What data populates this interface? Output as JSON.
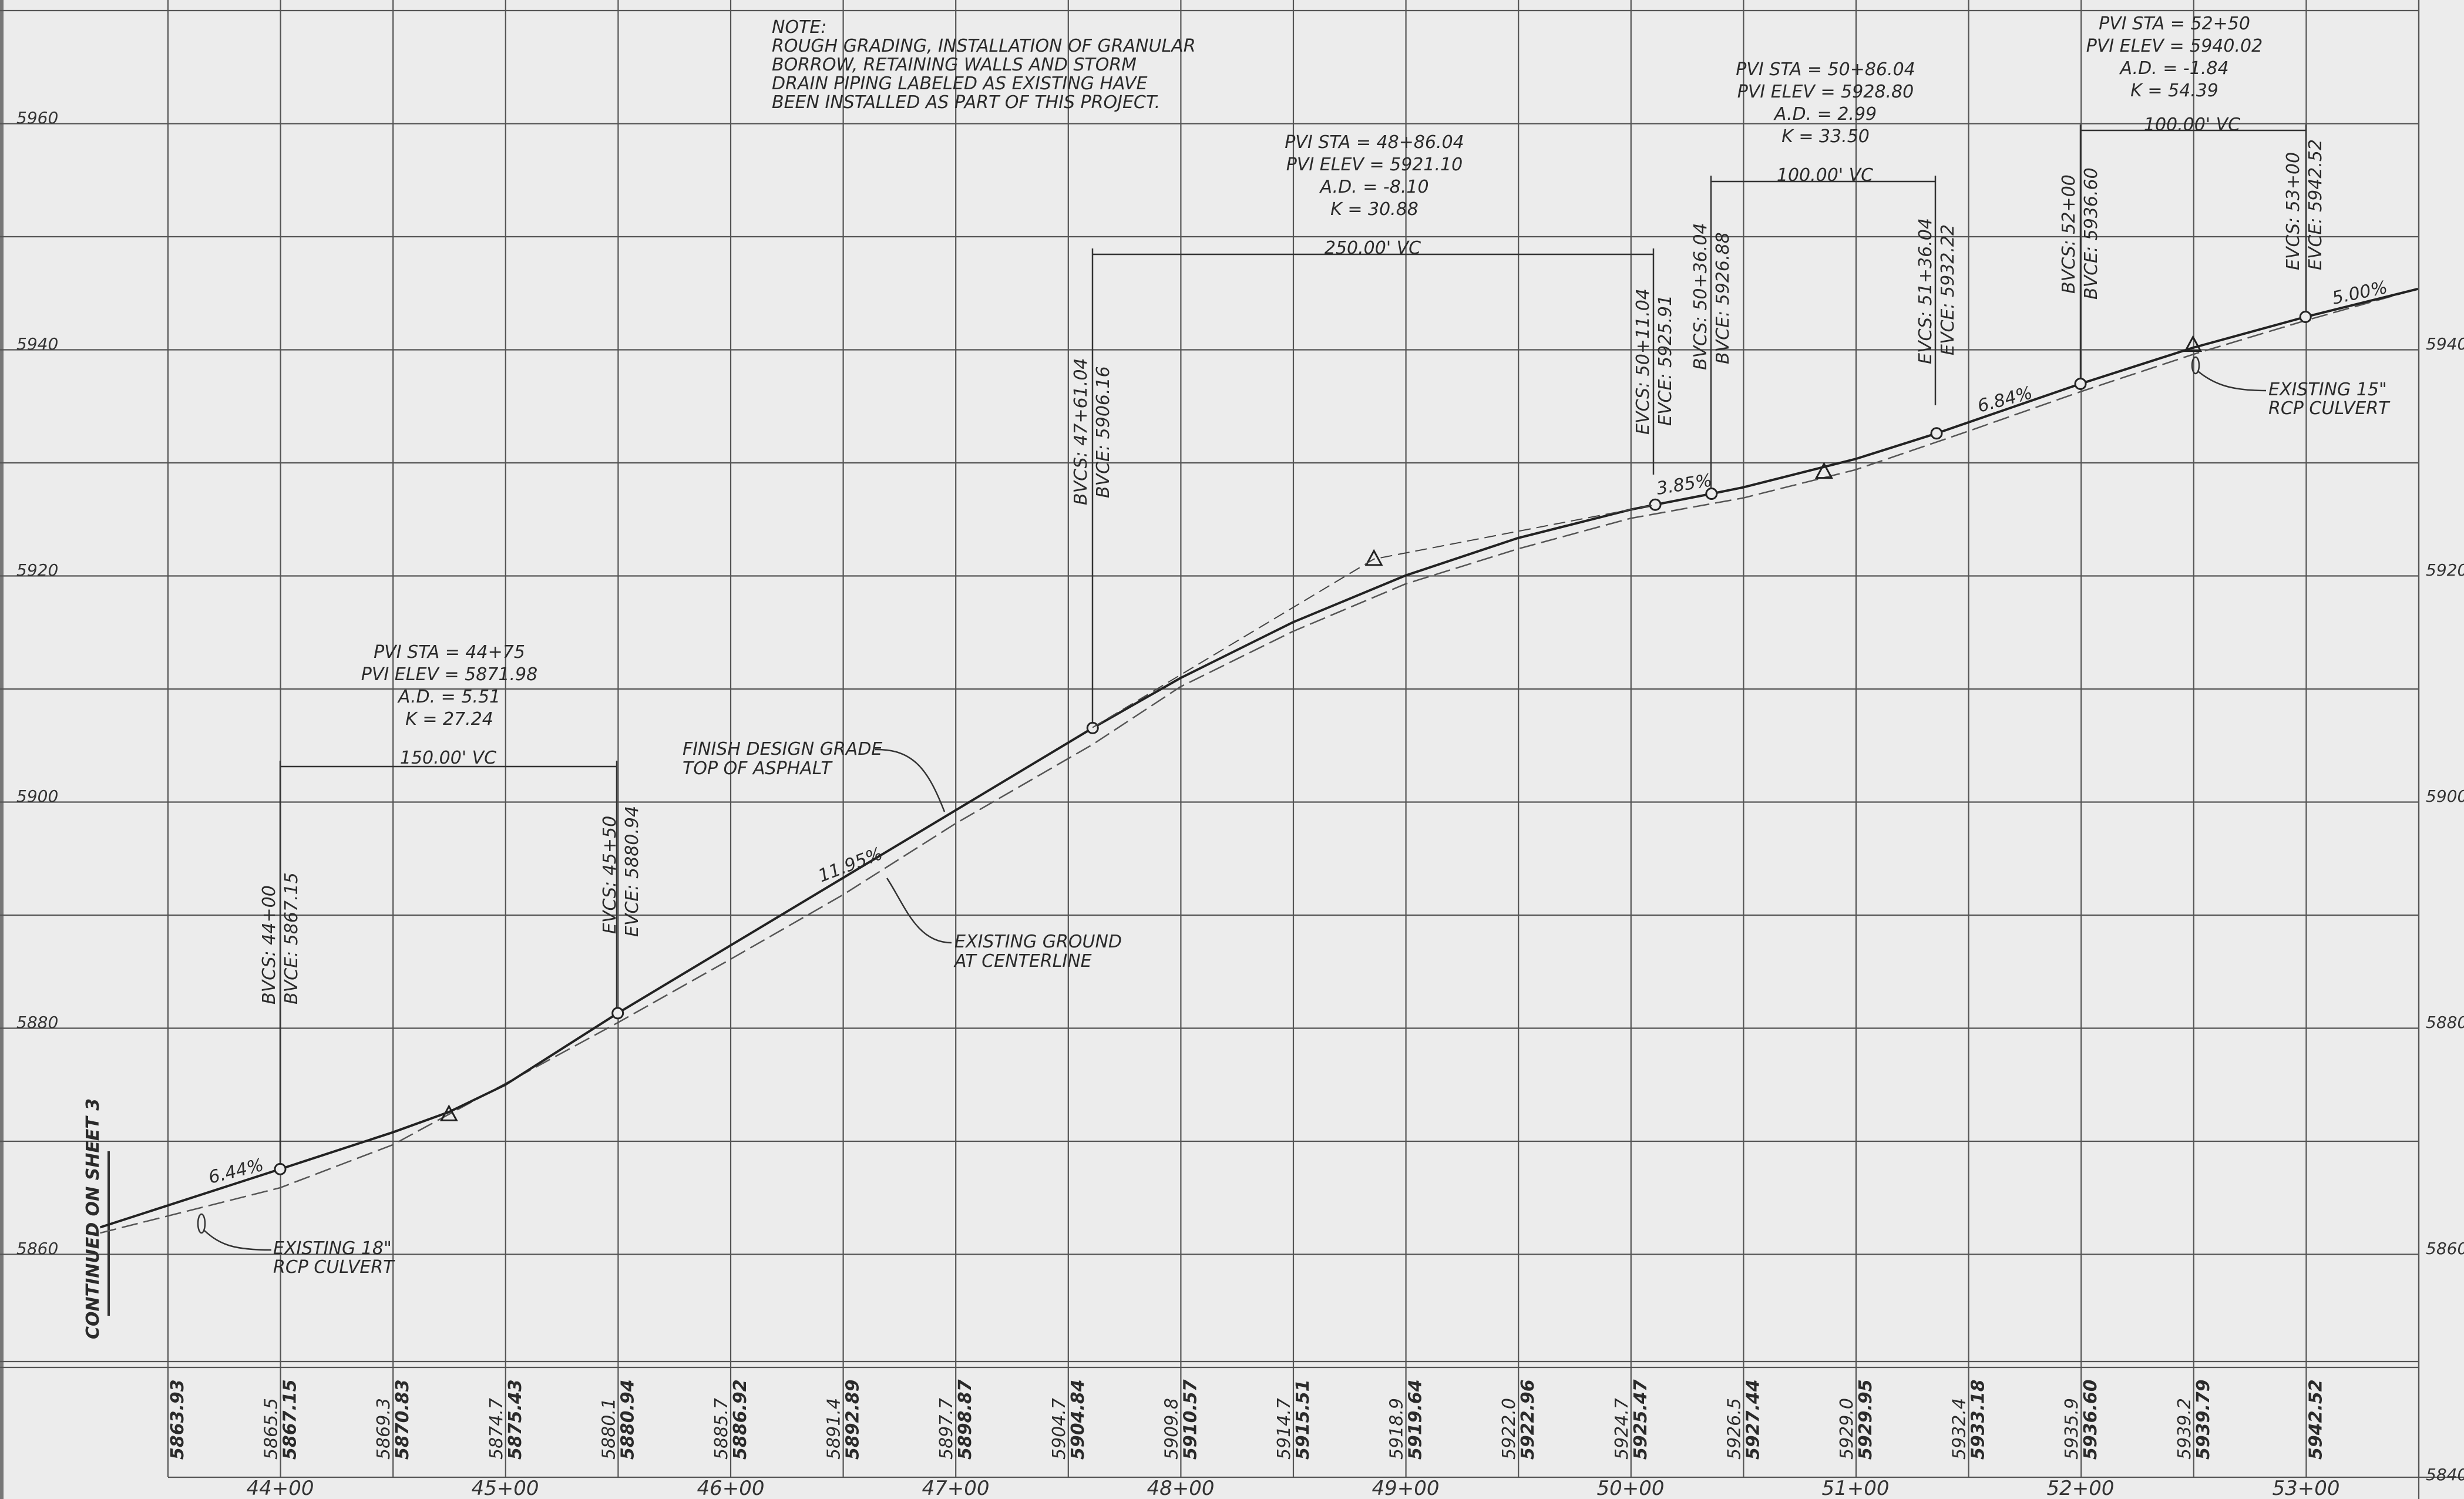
{
  "note": {
    "lines": [
      "NOTE:",
      "ROUGH GRADING, INSTALLATION OF GRANULAR",
      "BORROW, RETAINING WALLS AND STORM",
      "DRAIN PIPING LABELED AS EXISTING HAVE",
      "BEEN INSTALLED AS PART OF THIS PROJECT."
    ]
  },
  "continued_label": "CONTINUED ON SHEET 3",
  "elevation_ticks_left": [
    "5960",
    "5940",
    "5920",
    "5900",
    "5880",
    "5860"
  ],
  "elevation_ticks_right": [
    "5940",
    "5920",
    "5900",
    "5880",
    "5860",
    "5840"
  ],
  "station_ticks": [
    "44+00",
    "45+00",
    "46+00",
    "47+00",
    "48+00",
    "49+00",
    "50+00",
    "51+00",
    "52+00",
    "53+00"
  ],
  "bottom_elevations": [
    {
      "existing": "",
      "proposed": "5863.93"
    },
    {
      "existing": "5865.5",
      "proposed": "5867.15"
    },
    {
      "existing": "5869.3",
      "proposed": "5870.83"
    },
    {
      "existing": "5874.7",
      "proposed": "5875.43"
    },
    {
      "existing": "5880.1",
      "proposed": "5880.94"
    },
    {
      "existing": "5885.7",
      "proposed": "5886.92"
    },
    {
      "existing": "5891.4",
      "proposed": "5892.89"
    },
    {
      "existing": "5897.7",
      "proposed": "5898.87"
    },
    {
      "existing": "5904.7",
      "proposed": "5904.84"
    },
    {
      "existing": "5909.8",
      "proposed": "5910.57"
    },
    {
      "existing": "5914.7",
      "proposed": "5915.51"
    },
    {
      "existing": "5918.9",
      "proposed": "5919.64"
    },
    {
      "existing": "5922.0",
      "proposed": "5922.96"
    },
    {
      "existing": "5924.7",
      "proposed": "5925.47"
    },
    {
      "existing": "5926.5",
      "proposed": "5927.44"
    },
    {
      "existing": "5929.0",
      "proposed": "5929.95"
    },
    {
      "existing": "5932.4",
      "proposed": "5933.18"
    },
    {
      "existing": "5935.9",
      "proposed": "5936.60"
    },
    {
      "existing": "5939.2",
      "proposed": "5939.79"
    },
    {
      "existing": "",
      "proposed": "5942.52"
    }
  ],
  "pvi_blocks": [
    {
      "lines": [
        "PVI STA = 44+75",
        "PVI ELEV = 5871.98",
        "A.D. = 5.51",
        "K = 27.24"
      ],
      "vc": "150.00' VC"
    },
    {
      "lines": [
        "PVI STA = 48+86.04",
        "PVI ELEV = 5921.10",
        "A.D. = -8.10",
        "K = 30.88"
      ],
      "vc": "250.00' VC"
    },
    {
      "lines": [
        "PVI STA = 50+86.04",
        "PVI ELEV = 5928.80",
        "A.D. = 2.99",
        "K = 33.50"
      ],
      "vc": "100.00' VC"
    },
    {
      "lines": [
        "PVI STA = 52+50",
        "PVI ELEV = 5940.02",
        "A.D. = -1.84",
        "K = 54.39"
      ],
      "vc": "100.00' VC"
    }
  ],
  "vc_points": [
    {
      "line1": "BVCS: 44+00",
      "line2": "BVCE: 5867.15"
    },
    {
      "line1": "EVCS: 45+50",
      "line2": "EVCE: 5880.94"
    },
    {
      "line1": "BVCS: 47+61.04",
      "line2": "BVCE: 5906.16"
    },
    {
      "line1": "EVCS: 50+11.04",
      "line2": "EVCE: 5925.91"
    },
    {
      "line1": "BVCS: 50+36.04",
      "line2": "BVCE: 5926.88"
    },
    {
      "line1": "EVCS: 51+36.04",
      "line2": "EVCE: 5932.22"
    },
    {
      "line1": "BVCS: 52+00",
      "line2": "BVCE: 5936.60"
    },
    {
      "line1": "EVCS: 53+00",
      "line2": "EVCE: 5942.52"
    }
  ],
  "grades": [
    "6.44%",
    "11.95%",
    "3.85%",
    "6.84%",
    "5.00%"
  ],
  "callouts": {
    "finish": [
      "FINISH DESIGN GRADE",
      "TOP OF ASPHALT"
    ],
    "existing": [
      "EXISTING GROUND",
      "AT CENTERLINE"
    ],
    "culvert18": [
      "EXISTING 18\"",
      "RCP CULVERT"
    ],
    "culvert15": [
      "EXISTING 15\"",
      "RCP CULVERT"
    ]
  }
}
